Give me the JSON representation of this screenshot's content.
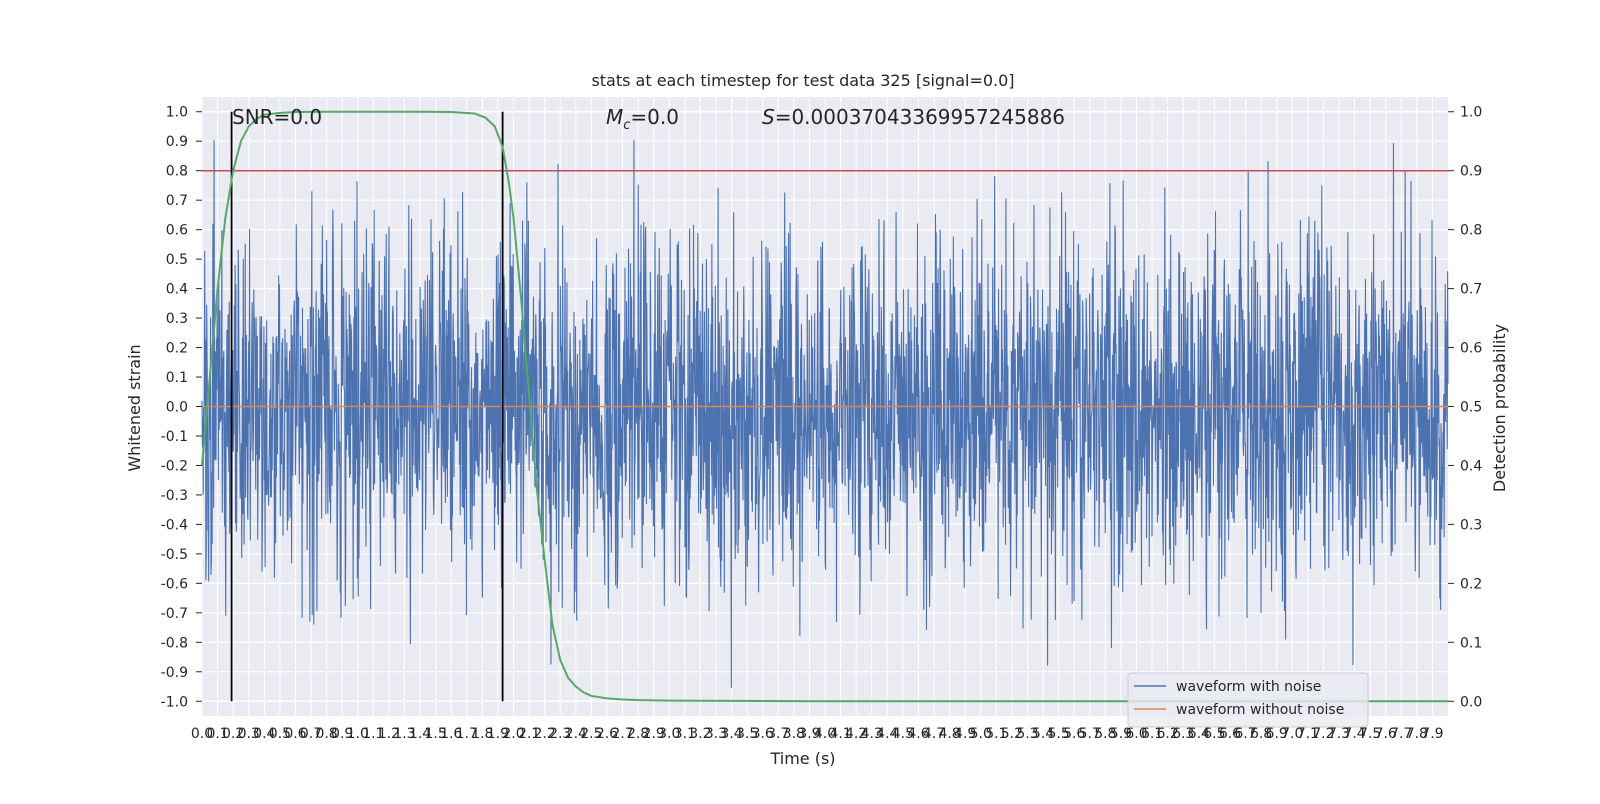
{
  "chart_data": {
    "type": "line",
    "title": "stats at each timestep for test data 325 [signal=0.0]",
    "xlabel": "Time (s)",
    "ylabel": "Whitened strain",
    "y2label": "Detection probability",
    "xlim": [
      0,
      8.0
    ],
    "ylim": [
      -1.05,
      1.05
    ],
    "y2lim": [
      -0.025,
      1.025
    ],
    "x_ticks": [
      "0.0",
      "0.1",
      "0.2",
      "0.3",
      "0.4",
      "0.5",
      "0.6",
      "0.7",
      "0.8",
      "0.9",
      "1.0",
      "1.1",
      "1.2",
      "1.3",
      "1.4",
      "1.5",
      "1.6",
      "1.7",
      "1.8",
      "1.9",
      "2.0",
      "2.1",
      "2.2",
      "2.3",
      "2.4",
      "2.5",
      "2.6",
      "2.7",
      "2.8",
      "2.9",
      "3.0",
      "3.1",
      "3.2",
      "3.3",
      "3.4",
      "3.5",
      "3.6",
      "3.7",
      "3.8",
      "3.9",
      "4.0",
      "4.1",
      "4.2",
      "4.3",
      "4.4",
      "4.5",
      "4.6",
      "4.7",
      "4.8",
      "4.9",
      "5.0",
      "5.1",
      "5.2",
      "5.3",
      "5.4",
      "5.5",
      "5.6",
      "5.7",
      "5.8",
      "5.9",
      "6.0",
      "6.1",
      "6.2",
      "6.3",
      "6.4",
      "6.5",
      "6.6",
      "6.7",
      "6.8",
      "6.9",
      "7.0",
      "7.1",
      "7.2",
      "7.3",
      "7.4",
      "7.5",
      "7.6",
      "7.7",
      "7.8",
      "7.9"
    ],
    "y_ticks": [
      "1.0",
      "0.9",
      "0.8",
      "0.7",
      "0.6",
      "0.5",
      "0.4",
      "0.3",
      "0.2",
      "0.1",
      "0.0",
      "-0.1",
      "-0.2",
      "-0.3",
      "-0.4",
      "-0.5",
      "-0.6",
      "-0.7",
      "-0.8",
      "-0.9",
      "-1.0"
    ],
    "y2_ticks": [
      "1.0",
      "0.9",
      "0.8",
      "0.7",
      "0.6",
      "0.5",
      "0.4",
      "0.3",
      "0.2",
      "0.1",
      "0.0"
    ],
    "grid": true,
    "legend_position": "bottom-right",
    "annotations": {
      "snr": "SNR=0.0",
      "mc": "=0.0",
      "mc_symbol": "M",
      "mc_sub": "c",
      "s": "=0.00037043369957245886",
      "s_symbol": "S"
    },
    "series": [
      {
        "name": "waveform with noise",
        "color": "#4c72b0",
        "kind": "noise",
        "amplitude_std": 0.3,
        "max_abs": 1.0
      },
      {
        "name": "waveform without noise",
        "color": "#dd8452",
        "values_constant": 0.0
      },
      {
        "color": "#55a868",
        "axis": "y2",
        "kind": "detection_probability",
        "x": [
          0.0,
          0.05,
          0.1,
          0.15,
          0.2,
          0.25,
          0.3,
          0.35,
          0.4,
          0.5,
          0.6,
          0.8,
          1.0,
          1.4,
          1.6,
          1.75,
          1.82,
          1.88,
          1.93,
          1.97,
          2.0,
          2.05,
          2.1,
          2.15,
          2.2,
          2.25,
          2.3,
          2.35,
          2.4,
          2.45,
          2.5,
          2.6,
          2.7,
          2.8,
          3.0,
          4.0,
          5.0,
          6.0,
          7.0,
          8.0
        ],
        "values": [
          0.4,
          0.55,
          0.7,
          0.82,
          0.9,
          0.95,
          0.975,
          0.988,
          0.995,
          0.998,
          0.9995,
          1.0,
          1.0,
          1.0,
          0.9995,
          0.997,
          0.99,
          0.975,
          0.94,
          0.88,
          0.82,
          0.68,
          0.52,
          0.36,
          0.24,
          0.13,
          0.07,
          0.04,
          0.025,
          0.015,
          0.009,
          0.005,
          0.003,
          0.002,
          0.001,
          0.0,
          0.0,
          0.0,
          0.0,
          0.0
        ]
      },
      {
        "color": "#c44e52",
        "axis": "y2",
        "kind": "threshold",
        "value": 0.9
      },
      {
        "color": "#000000",
        "kind": "event_marker",
        "x": 0.19
      },
      {
        "color": "#000000",
        "kind": "event_marker",
        "x": 1.93
      }
    ]
  }
}
